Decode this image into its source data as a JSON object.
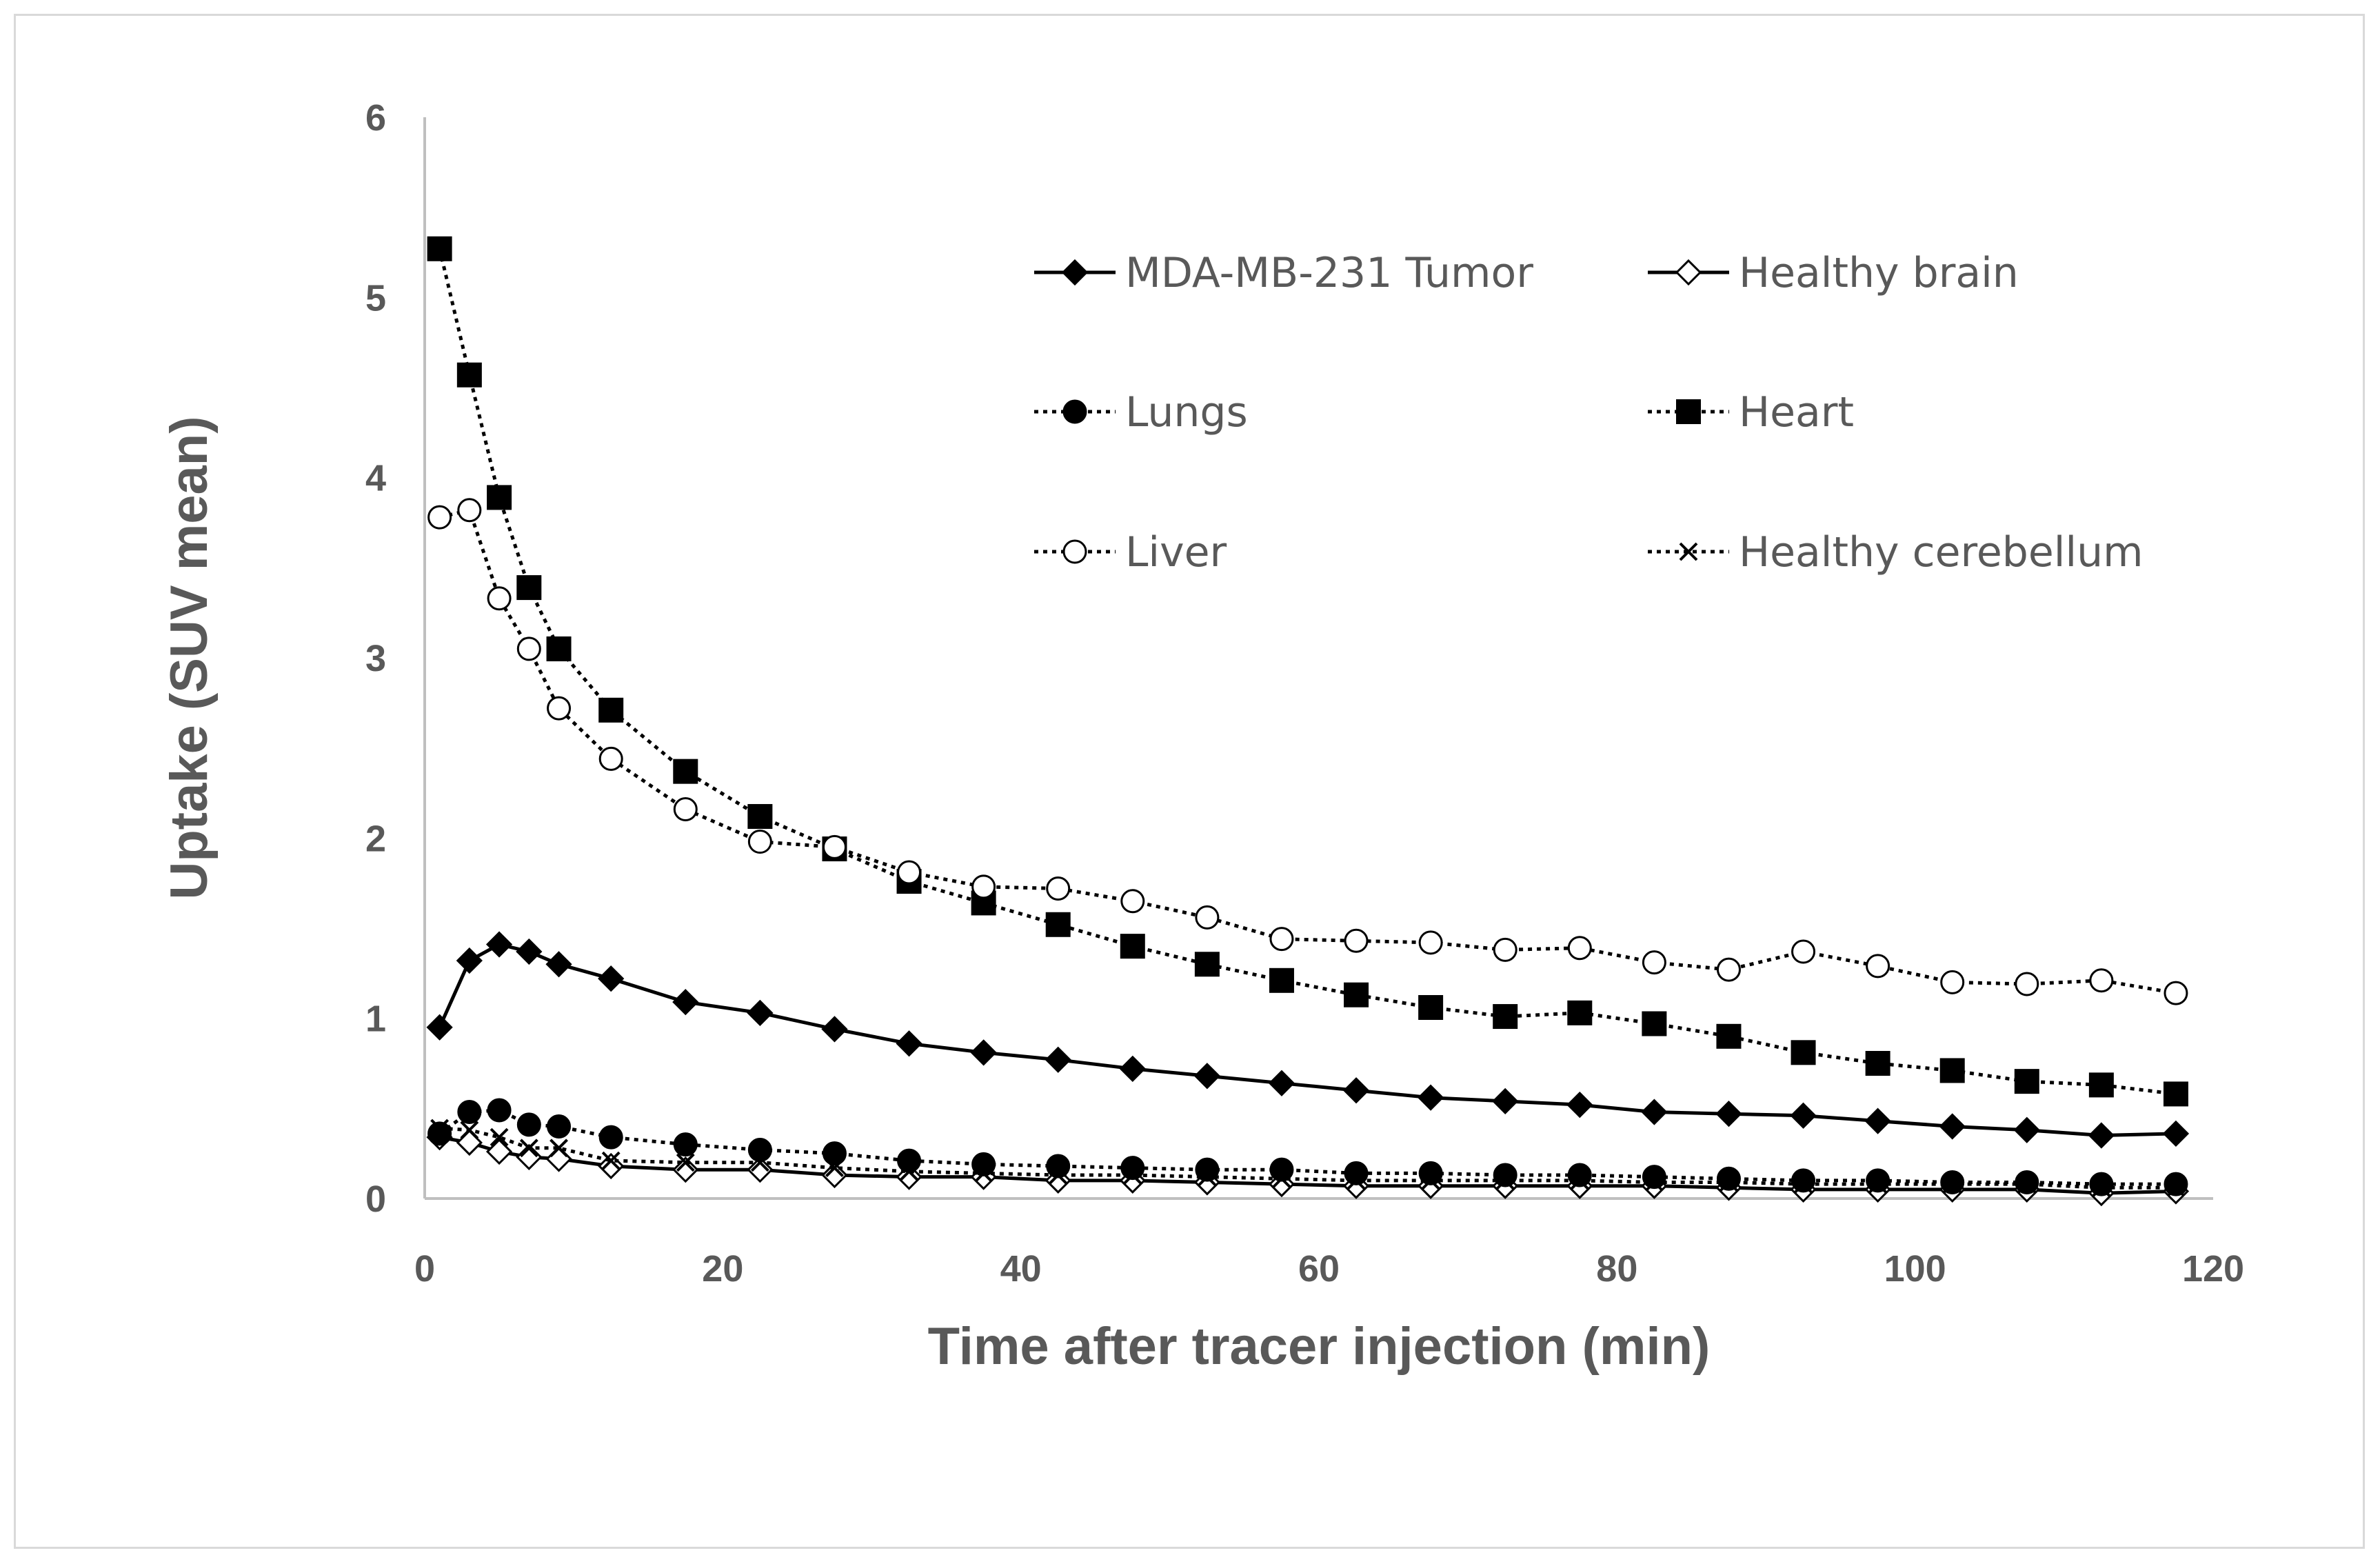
{
  "chart_data": {
    "type": "line",
    "title": "",
    "xlabel": "Time after tracer injection (min)",
    "ylabel": "Uptake (SUV mean)",
    "xlim": [
      0,
      120
    ],
    "ylim": [
      0,
      6
    ],
    "xticks": [
      "0",
      "20",
      "40",
      "60",
      "80",
      "100",
      "120"
    ],
    "yticks": [
      "0",
      "1",
      "2",
      "3",
      "4",
      "5",
      "6"
    ],
    "grid": false,
    "legend_position": "top-right",
    "x": [
      1,
      3,
      5,
      7,
      9,
      12.5,
      17.5,
      22.5,
      27.5,
      32.5,
      37.5,
      42.5,
      47.5,
      52.5,
      57.5,
      62.5,
      67.5,
      72.5,
      77.5,
      82.5,
      87.5,
      92.5,
      97.5,
      102.5,
      107.5,
      112.5,
      117.5
    ],
    "series": [
      {
        "name": "MDA-MB-231 Tumor",
        "line": "solid",
        "marker": "diamond-filled",
        "values": [
          0.95,
          1.32,
          1.41,
          1.37,
          1.3,
          1.22,
          1.09,
          1.03,
          0.94,
          0.86,
          0.81,
          0.77,
          0.72,
          0.68,
          0.64,
          0.6,
          0.56,
          0.54,
          0.52,
          0.48,
          0.47,
          0.46,
          0.43,
          0.4,
          0.38,
          0.35,
          0.36
        ]
      },
      {
        "name": "Healthy brain",
        "line": "solid",
        "marker": "diamond-open",
        "values": [
          0.34,
          0.31,
          0.26,
          0.23,
          0.22,
          0.18,
          0.16,
          0.16,
          0.13,
          0.12,
          0.12,
          0.1,
          0.1,
          0.09,
          0.08,
          0.07,
          0.07,
          0.07,
          0.07,
          0.07,
          0.06,
          0.05,
          0.05,
          0.05,
          0.05,
          0.03,
          0.04
        ]
      },
      {
        "name": "Lungs",
        "line": "dotted",
        "marker": "circle-filled",
        "values": [
          0.36,
          0.48,
          0.49,
          0.41,
          0.4,
          0.34,
          0.3,
          0.27,
          0.25,
          0.21,
          0.19,
          0.18,
          0.17,
          0.16,
          0.16,
          0.14,
          0.14,
          0.13,
          0.13,
          0.12,
          0.11,
          0.1,
          0.1,
          0.09,
          0.09,
          0.08,
          0.08
        ]
      },
      {
        "name": "Heart",
        "line": "dotted",
        "marker": "square-filled",
        "values": [
          5.27,
          4.57,
          3.89,
          3.39,
          3.05,
          2.71,
          2.37,
          2.12,
          1.94,
          1.76,
          1.64,
          1.52,
          1.4,
          1.3,
          1.21,
          1.13,
          1.06,
          1.01,
          1.03,
          0.97,
          0.9,
          0.81,
          0.75,
          0.71,
          0.65,
          0.63,
          0.58
        ]
      },
      {
        "name": "Liver",
        "line": "dotted",
        "marker": "circle-open",
        "values": [
          3.78,
          3.82,
          3.33,
          3.05,
          2.72,
          2.44,
          2.16,
          1.98,
          1.95,
          1.81,
          1.73,
          1.72,
          1.65,
          1.56,
          1.44,
          1.43,
          1.42,
          1.38,
          1.39,
          1.31,
          1.27,
          1.37,
          1.29,
          1.2,
          1.19,
          1.21,
          1.14
        ]
      },
      {
        "name": "Healthy cerebellum",
        "line": "dotted",
        "marker": "x",
        "values": [
          0.39,
          0.38,
          0.34,
          0.28,
          0.28,
          0.21,
          0.2,
          0.2,
          0.17,
          0.15,
          0.14,
          0.13,
          0.13,
          0.12,
          0.11,
          0.1,
          0.1,
          0.1,
          0.1,
          0.09,
          0.09,
          0.08,
          0.08,
          0.08,
          0.08,
          0.06,
          0.06
        ]
      }
    ]
  }
}
